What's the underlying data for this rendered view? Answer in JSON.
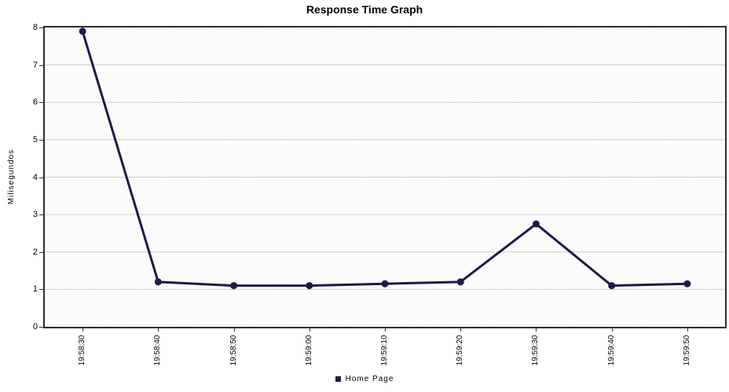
{
  "chart_data": {
    "type": "line",
    "title": "Response Time Graph",
    "ylabel": "Milisegundos",
    "xlabel": "",
    "categories": [
      "19:58:30",
      "19:58:40",
      "19:58:50",
      "19:59:00",
      "19:59:10",
      "19:59:20",
      "19:59:30",
      "19:59:40",
      "19:59:50"
    ],
    "series": [
      {
        "name": "Home Page",
        "color": "#1b1b4a",
        "values": [
          7.9,
          1.2,
          1.1,
          1.1,
          1.15,
          1.2,
          2.75,
          1.1,
          1.15
        ]
      }
    ],
    "ylim": [
      0,
      8
    ],
    "yticks": [
      0,
      1,
      2,
      3,
      4,
      5,
      6,
      7,
      8
    ],
    "grid": "horizontal",
    "gridline_color": "#cccccc",
    "axis_color": "#2d2d2d",
    "legend_position": "bottom-center"
  }
}
